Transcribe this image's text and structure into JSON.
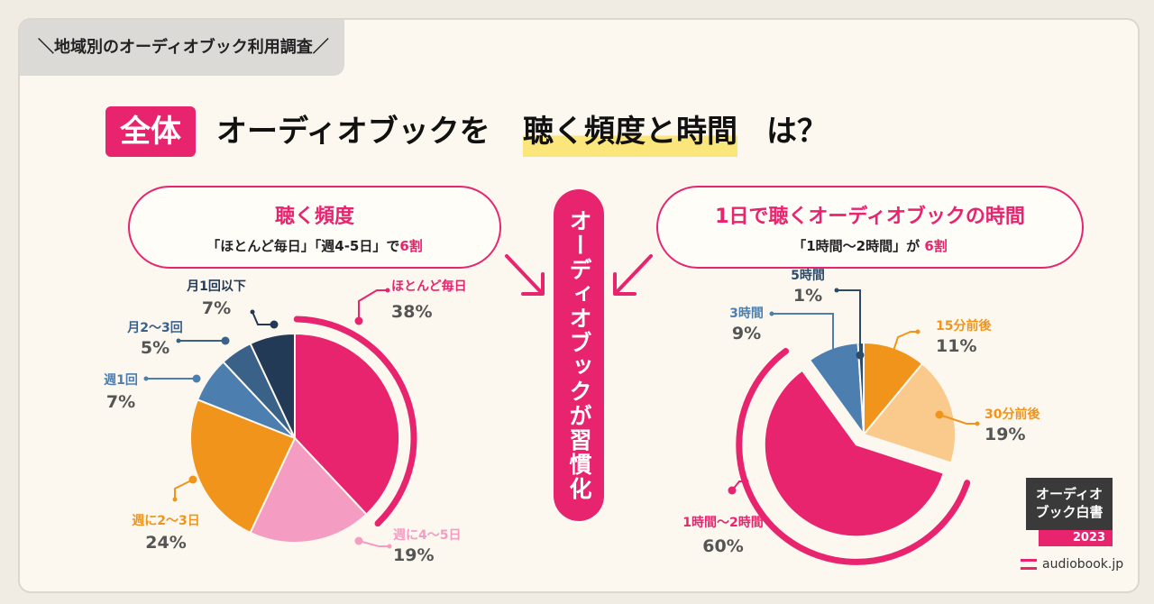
{
  "tag": "＼地域別のオーディオブック利用調査／",
  "badge": "全体",
  "title": {
    "part1": "オーディオブックを",
    "highlight": "聴く頻度と時間",
    "part3": "は？"
  },
  "left_callout": {
    "heading": "聴く頻度",
    "sub_text": "「ほとんど毎日」「週4-5日」で",
    "sub_highlight": "6割"
  },
  "right_callout": {
    "heading": "1日で聴くオーディオブックの時間",
    "sub_text": "「1時間〜2時間」が",
    "sub_highlight": "6割"
  },
  "center_banner": "オーディオブックが習慣化",
  "logo": {
    "line1": "オーディオ",
    "line2": "ブック白書",
    "year": "2023"
  },
  "brand": "audiobook.jp",
  "colors": {
    "accent": "#e8246e"
  },
  "chart_data": [
    {
      "type": "pie",
      "slices": [
        {
          "label": "ほとんど毎日",
          "value": 38,
          "value_label": "38%",
          "color": "#e8246e"
        },
        {
          "label": "週に4〜5日",
          "value": 19,
          "value_label": "19%",
          "color": "#f59cc2"
        },
        {
          "label": "週に2〜3日",
          "value": 24,
          "value_label": "24%",
          "color": "#f0941c"
        },
        {
          "label": "週1回",
          "value": 7,
          "value_label": "7%",
          "color": "#4c7fb0"
        },
        {
          "label": "月2〜3回",
          "value": 5,
          "value_label": "5%",
          "color": "#3a6188"
        },
        {
          "label": "月1回以下",
          "value": 7,
          "value_label": "7%",
          "color": "#223a55"
        }
      ]
    },
    {
      "type": "pie",
      "slices": [
        {
          "label": "15分前後",
          "value": 11,
          "value_label": "11%",
          "color": "#f0941c"
        },
        {
          "label": "30分前後",
          "value": 19,
          "value_label": "19%",
          "color": "#f9ca8c"
        },
        {
          "label": "1時間〜2時間",
          "value": 60,
          "value_label": "60%",
          "color": "#e8246e"
        },
        {
          "label": "3時間",
          "value": 9,
          "value_label": "9%",
          "color": "#4c7fb0"
        },
        {
          "label": "5時間",
          "value": 1,
          "value_label": "1%",
          "color": "#2c4a6a"
        }
      ]
    }
  ]
}
